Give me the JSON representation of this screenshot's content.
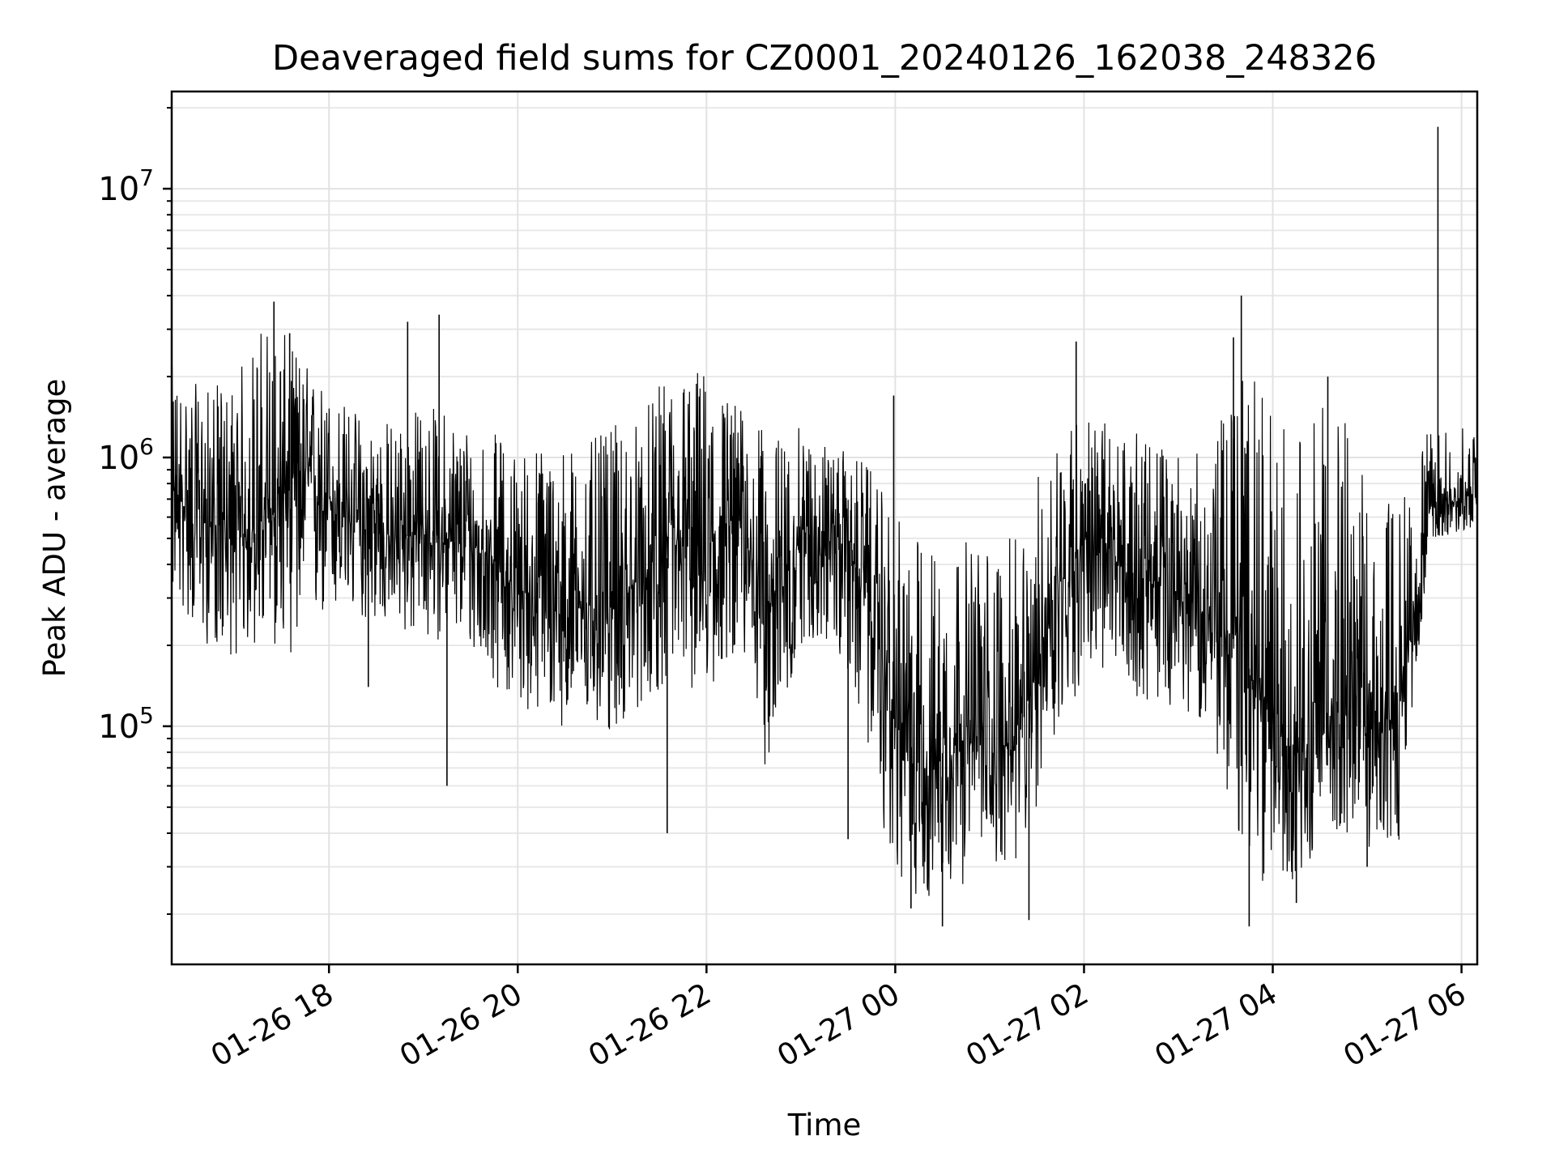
{
  "chart_data": {
    "type": "line",
    "title": "Deaveraged field sums for CZ0001_20240126_162038_248326",
    "xlabel": "Time",
    "ylabel": "Peak ADU - average",
    "yscale": "log",
    "x_range": [
      "01-26 16:20",
      "01-27 06:10"
    ],
    "ylim": [
      13000,
      23000000
    ],
    "grid": true,
    "line_color": "#000000",
    "x_ticks": [
      "01-26 18",
      "01-26 20",
      "01-26 22",
      "01-27 00",
      "01-27 02",
      "01-27 04",
      "01-27 06"
    ],
    "y_ticks": [
      {
        "base": "10",
        "exp": "5",
        "value": 100000
      },
      {
        "base": "10",
        "exp": "6",
        "value": 1000000
      },
      {
        "base": "10",
        "exp": "7",
        "value": 10000000
      }
    ],
    "series": [
      {
        "x": [
          "01-26 16:20",
          "01-26 16:40",
          "01-26 17:00",
          "01-26 17:20",
          "01-26 17:40",
          "01-26 18:00",
          "01-26 18:20",
          "01-26 18:40",
          "01-26 19:00",
          "01-26 19:20",
          "01-26 19:40",
          "01-26 20:00",
          "01-26 20:20",
          "01-26 20:40",
          "01-26 21:00",
          "01-26 21:20",
          "01-26 21:40",
          "01-26 22:00",
          "01-26 22:20",
          "01-26 22:40",
          "01-26 23:00",
          "01-26 23:20",
          "01-26 23:40",
          "01-27 00:00",
          "01-27 00:20",
          "01-27 00:40",
          "01-27 01:00",
          "01-27 01:20",
          "01-27 01:40",
          "01-27 02:00",
          "01-27 02:20",
          "01-27 02:40",
          "01-27 03:00",
          "01-27 03:20",
          "01-27 03:40",
          "01-27 04:00",
          "01-27 04:20",
          "01-27 04:40",
          "01-27 05:00",
          "01-27 05:20",
          "01-27 05:40",
          "01-27 06:00",
          "01-27 06:10"
        ],
        "y": [
          700000,
          600000,
          500000,
          550000,
          900000,
          700000,
          550000,
          500000,
          520000,
          480000,
          450000,
          320000,
          300000,
          280000,
          280000,
          350000,
          450000,
          450000,
          600000,
          280000,
          500000,
          550000,
          350000,
          100000,
          70000,
          90000,
          80000,
          90000,
          300000,
          500000,
          400000,
          350000,
          300000,
          250000,
          200000,
          90000,
          80000,
          120000,
          100000,
          110000,
          650000,
          700000,
          750000
        ],
        "low": [
          300000,
          200000,
          180000,
          200000,
          180000,
          250000,
          250000,
          230000,
          200000,
          220000,
          150000,
          120000,
          100000,
          100000,
          90000,
          120000,
          150000,
          120000,
          200000,
          60000,
          200000,
          200000,
          100000,
          25000,
          22000,
          25000,
          30000,
          30000,
          80000,
          150000,
          150000,
          120000,
          120000,
          100000,
          30000,
          25000,
          28000,
          40000,
          35000,
          35000,
          500000,
          520000,
          550000
        ],
        "high": [
          2200000,
          1800000,
          2000000,
          3500000,
          2500000,
          1800000,
          1500000,
          1400000,
          1600000,
          1500000,
          1300000,
          1100000,
          1200000,
          1100000,
          1300000,
          1500000,
          2300000,
          2200000,
          1600000,
          1200000,
          1300000,
          1100000,
          1000000,
          600000,
          500000,
          500000,
          500000,
          500000,
          1400000,
          1500000,
          1300000,
          1200000,
          1100000,
          1000000,
          2500000,
          1500000,
          1300000,
          1800000,
          800000,
          700000,
          1300000,
          1300000,
          1200000
        ],
        "spikes": [
          {
            "x": "01-26 17:25",
            "y": 3800000
          },
          {
            "x": "01-26 17:35",
            "y": 2900000
          },
          {
            "x": "01-26 18:25",
            "y": 140000
          },
          {
            "x": "01-26 18:50",
            "y": 3200000
          },
          {
            "x": "01-26 19:10",
            "y": 3400000
          },
          {
            "x": "01-26 19:15",
            "y": 60000
          },
          {
            "x": "01-26 21:35",
            "y": 40000
          },
          {
            "x": "01-26 23:30",
            "y": 38000
          },
          {
            "x": "01-26 23:59",
            "y": 1700000
          },
          {
            "x": "01-27 00:10",
            "y": 21000
          },
          {
            "x": "01-27 00:30",
            "y": 18000
          },
          {
            "x": "01-27 01:25",
            "y": 19000
          },
          {
            "x": "01-27 01:55",
            "y": 2700000
          },
          {
            "x": "01-27 03:35",
            "y": 2800000
          },
          {
            "x": "01-27 03:40",
            "y": 4000000
          },
          {
            "x": "01-27 03:45",
            "y": 18000
          },
          {
            "x": "01-27 04:15",
            "y": 22000
          },
          {
            "x": "01-27 04:35",
            "y": 2000000
          },
          {
            "x": "01-27 05:00",
            "y": 30000
          },
          {
            "x": "01-27 05:45",
            "y": 17000000
          }
        ]
      }
    ]
  }
}
